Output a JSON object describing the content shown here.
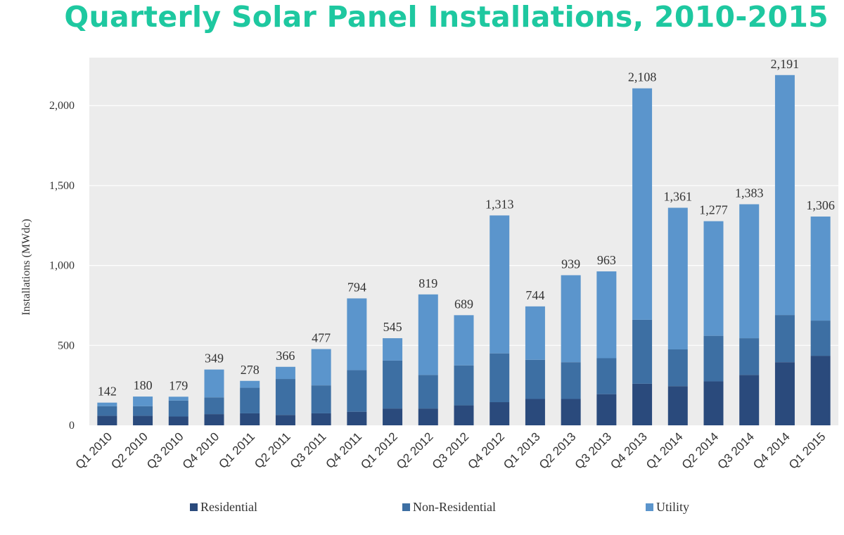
{
  "chart_data": {
    "type": "bar",
    "stacked": true,
    "title": "Quarterly Solar Panel Installations, 2010-2015",
    "ylabel": "Installations (MWdc)",
    "xlabel": "",
    "ylim": [
      0,
      2300
    ],
    "yticks": [
      0,
      500,
      1000,
      1500,
      2000
    ],
    "ytick_labels": [
      "0",
      "500",
      "1,000",
      "1,500",
      "2,000"
    ],
    "grid": true,
    "legend_position": "bottom",
    "categories": [
      "Q1 2010",
      "Q2 2010",
      "Q3 2010",
      "Q4 2010",
      "Q1 2011",
      "Q2 2011",
      "Q3 2011",
      "Q4 2011",
      "Q1 2012",
      "Q2 2012",
      "Q3 2012",
      "Q4 2012",
      "Q1 2013",
      "Q2 2013",
      "Q3 2013",
      "Q4 2013",
      "Q1 2014",
      "Q2 2014",
      "Q3 2014",
      "Q4 2014",
      "Q1 2015"
    ],
    "series": [
      {
        "name": "Residential",
        "color": "#2a4a7c",
        "values": [
          60,
          60,
          55,
          70,
          75,
          65,
          75,
          85,
          105,
          105,
          125,
          145,
          165,
          165,
          195,
          260,
          245,
          275,
          315,
          395,
          435
        ]
      },
      {
        "name": "Non-Residential",
        "color": "#3d6fa3",
        "values": [
          60,
          60,
          100,
          105,
          160,
          225,
          175,
          260,
          300,
          210,
          250,
          305,
          245,
          230,
          225,
          400,
          230,
          285,
          230,
          295,
          220
        ]
      },
      {
        "name": "Utility",
        "color": "#5b95cc",
        "values": [
          22,
          60,
          24,
          174,
          43,
          76,
          227,
          449,
          140,
          504,
          314,
          863,
          334,
          544,
          543,
          1448,
          886,
          717,
          838,
          1501,
          651
        ]
      }
    ],
    "totals": [
      142,
      180,
      179,
      349,
      278,
      366,
      477,
      794,
      545,
      819,
      689,
      1313,
      744,
      939,
      963,
      2108,
      1361,
      1277,
      1383,
      2191,
      1306
    ],
    "total_labels": [
      "142",
      "180",
      "179",
      "349",
      "278",
      "366",
      "477",
      "794",
      "545",
      "819",
      "689",
      "1,313",
      "744",
      "939",
      "963",
      "2,108",
      "1,361",
      "1,277",
      "1,383",
      "2,191",
      "1,306"
    ]
  }
}
